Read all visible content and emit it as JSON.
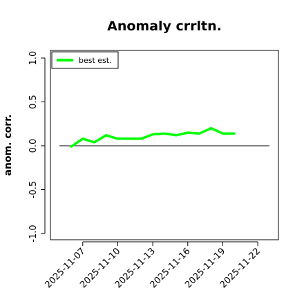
{
  "chart_data": {
    "type": "line",
    "title": "Anomaly crrltn.",
    "xlabel": "",
    "ylabel": "anom. corr.",
    "ylim": [
      -1.0,
      1.0
    ],
    "xlim": [
      "2025-11-05",
      "2025-11-23"
    ],
    "y_ticks": [
      "-1.0",
      "-0.5",
      "0.0",
      "0.5",
      "1.0"
    ],
    "x_ticks": [
      "2025-11-07",
      "2025-11-10",
      "2025-11-13",
      "2025-11-16",
      "2025-11-19",
      "2025-11-22"
    ],
    "grid": false,
    "legend_position": "top-left",
    "reference_line": 0.0,
    "series": [
      {
        "name": "best est.",
        "color": "#00ff00",
        "x": [
          "2025-11-06",
          "2025-11-07",
          "2025-11-08",
          "2025-11-09",
          "2025-11-10",
          "2025-11-11",
          "2025-11-12",
          "2025-11-13",
          "2025-11-14",
          "2025-11-15",
          "2025-11-16",
          "2025-11-17",
          "2025-11-18",
          "2025-11-19",
          "2025-11-20"
        ],
        "values": [
          -0.01,
          0.08,
          0.04,
          0.12,
          0.08,
          0.08,
          0.08,
          0.13,
          0.14,
          0.12,
          0.15,
          0.14,
          0.2,
          0.14,
          0.14
        ]
      }
    ]
  }
}
